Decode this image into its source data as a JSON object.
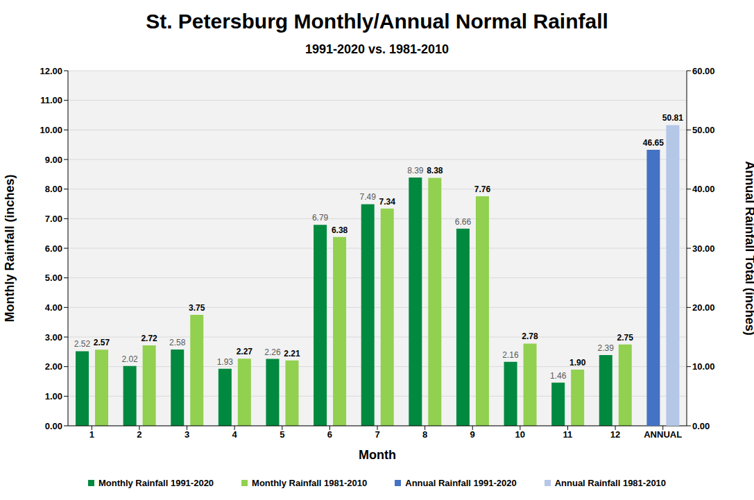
{
  "chart_data": {
    "type": "bar",
    "title": "St. Petersburg Monthly/Annual Normal Rainfall",
    "subtitle": "1991-2020 vs. 1981-2010",
    "x_label": "Month",
    "y_label": "Monthly Rainfall (inches)",
    "y2_label": "Annual Rainfall Total (inches)",
    "categories": [
      "1",
      "2",
      "3",
      "4",
      "5",
      "6",
      "7",
      "8",
      "9",
      "10",
      "11",
      "12",
      "ANNUAL"
    ],
    "series": [
      {
        "name": "Monthly Rainfall 1991-2020",
        "color": "#00893f",
        "values": [
          2.52,
          2.02,
          2.58,
          1.93,
          2.26,
          6.79,
          7.49,
          8.39,
          6.66,
          2.16,
          1.46,
          2.39,
          null
        ],
        "value_labels": [
          "2.52",
          "2.02",
          "2.58",
          "1.93",
          "2.26",
          "6.79",
          "7.49",
          "8.39",
          "6.66",
          "2.16",
          "1.46",
          "2.39",
          null
        ]
      },
      {
        "name": "Monthly Rainfall 1981-2010",
        "color": "#92d050",
        "values": [
          2.57,
          2.72,
          3.75,
          2.27,
          2.21,
          6.38,
          7.34,
          8.38,
          7.76,
          2.78,
          1.9,
          2.75,
          null
        ],
        "value_labels": [
          "2.57",
          "2.72",
          "3.75",
          "2.27",
          "2.21",
          "6.38",
          "7.34",
          "8.38",
          "7.76",
          "2.78",
          "1.90",
          "2.75",
          null
        ]
      },
      {
        "name": "Annual Rainfall 1991-2020",
        "color": "#4472c4",
        "axis": "y2",
        "values": [
          null,
          null,
          null,
          null,
          null,
          null,
          null,
          null,
          null,
          null,
          null,
          null,
          46.65
        ],
        "value_labels": [
          null,
          null,
          null,
          null,
          null,
          null,
          null,
          null,
          null,
          null,
          null,
          null,
          "46.65"
        ]
      },
      {
        "name": "Annual Rainfall 1981-2010",
        "color": "#b4c7e7",
        "axis": "y2",
        "values": [
          null,
          null,
          null,
          null,
          null,
          null,
          null,
          null,
          null,
          null,
          null,
          null,
          50.81
        ],
        "value_labels": [
          null,
          null,
          null,
          null,
          null,
          null,
          null,
          null,
          null,
          null,
          null,
          null,
          "50.81"
        ]
      }
    ],
    "ylim": [
      0,
      12
    ],
    "yticks": [
      {
        "value": 0,
        "label": "0.00"
      },
      {
        "value": 1,
        "label": "1.00"
      },
      {
        "value": 2,
        "label": "2.00"
      },
      {
        "value": 3,
        "label": "3.00"
      },
      {
        "value": 4,
        "label": "4.00"
      },
      {
        "value": 5,
        "label": "5.00"
      },
      {
        "value": 6,
        "label": "6.00"
      },
      {
        "value": 7,
        "label": "7.00"
      },
      {
        "value": 8,
        "label": "8.00"
      },
      {
        "value": 9,
        "label": "9.00"
      },
      {
        "value": 10,
        "label": "10.00"
      },
      {
        "value": 11,
        "label": "11.00"
      },
      {
        "value": 12,
        "label": "12.00"
      }
    ],
    "y2lim": [
      0,
      60
    ],
    "y2ticks": [
      {
        "value": 0,
        "label": "0.00"
      },
      {
        "value": 10,
        "label": "10.00"
      },
      {
        "value": 20,
        "label": "20.00"
      },
      {
        "value": 30,
        "label": "30.00"
      },
      {
        "value": 40,
        "label": "40.00"
      },
      {
        "value": 50,
        "label": "50.00"
      },
      {
        "value": 60,
        "label": "60.00"
      }
    ],
    "grid": true,
    "data_labels": true,
    "legend": "bottom"
  }
}
